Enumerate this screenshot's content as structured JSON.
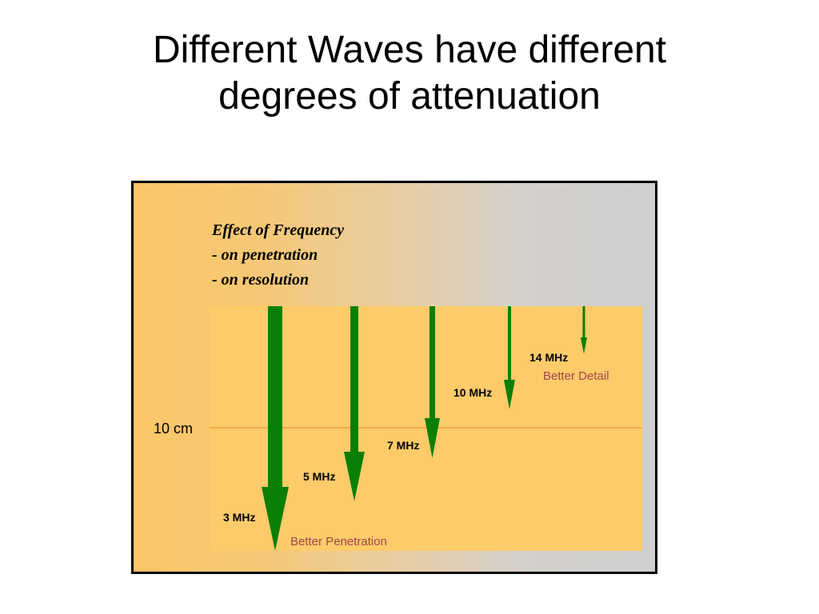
{
  "slide": {
    "title_line1": "Different Waves have different",
    "title_line2": "degrees of attenuation"
  },
  "figure": {
    "caption": [
      "Effect of Frequency",
      "- on penetration",
      "- on resolution"
    ],
    "depth_marker": "10 cm",
    "better_detail": "Better Detail",
    "better_penetration": "Better Penetration",
    "colors": {
      "arrow": "#0a7f06",
      "tissue": "#fdcb69",
      "depth_line": "#e8a33a",
      "note_text": "#a0464b"
    },
    "waves": [
      {
        "label": "3 MHz"
      },
      {
        "label": "5 MHz"
      },
      {
        "label": "7 MHz"
      },
      {
        "label": "10 MHz"
      },
      {
        "label": "14 MHz"
      }
    ]
  }
}
